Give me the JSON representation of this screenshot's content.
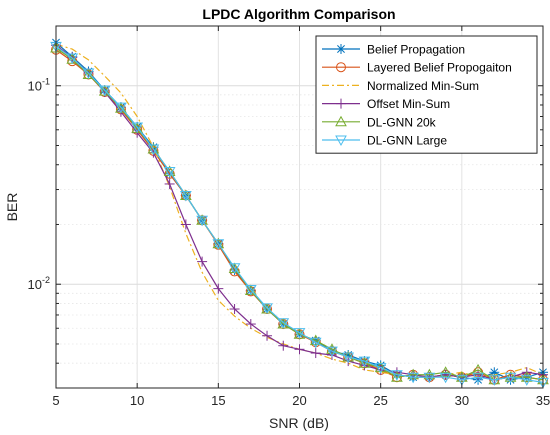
{
  "chart_data": {
    "type": "line",
    "title": "LPDC Algorithm Comparison",
    "xlabel": "SNR (dB)",
    "ylabel": "BER",
    "xlim": [
      5,
      35
    ],
    "ylim": [
      0.003,
      0.2
    ],
    "yscale": "log",
    "grid": true,
    "minor_grid": true,
    "legend_position": "top-right",
    "x_ticks": [
      5,
      10,
      15,
      20,
      25,
      30,
      35
    ],
    "x_tick_labels": [
      "5",
      "10",
      "15",
      "20",
      "25",
      "30",
      "35"
    ],
    "y_ticks": [
      0.01,
      0.1
    ],
    "y_tick_labels": [
      {
        "base": "10",
        "exp": "-2"
      },
      {
        "base": "10",
        "exp": "-1"
      }
    ],
    "x": [
      5,
      6,
      7,
      8,
      9,
      10,
      11,
      12,
      13,
      14,
      15,
      16,
      17,
      18,
      19,
      20,
      21,
      22,
      23,
      24,
      25,
      26,
      27,
      28,
      29,
      30,
      31,
      32,
      33,
      34,
      35
    ],
    "series": [
      {
        "name": "Belief Propagation",
        "color": "#0072bd",
        "marker": "asterisk",
        "values": [
          0.165,
          0.14,
          0.118,
          0.095,
          0.078,
          0.062,
          0.049,
          0.036,
          0.028,
          0.021,
          0.016,
          0.0118,
          0.0093,
          0.0075,
          0.0063,
          0.0056,
          0.0052,
          0.0046,
          0.0044,
          0.0041,
          0.0039,
          0.0035,
          0.0034,
          0.0034,
          0.0035,
          0.0034,
          0.0033,
          0.0036,
          0.0033,
          0.0034,
          0.0036
        ]
      },
      {
        "name": "Layered Belief Propogaiton",
        "color": "#d95319",
        "marker": "circle",
        "values": [
          0.152,
          0.133,
          0.114,
          0.093,
          0.076,
          0.06,
          0.047,
          0.036,
          0.028,
          0.021,
          0.0158,
          0.0116,
          0.0092,
          0.0075,
          0.0063,
          0.0056,
          0.0051,
          0.0046,
          0.0043,
          0.004,
          0.0037,
          0.0034,
          0.0035,
          0.0034,
          0.0035,
          0.0034,
          0.0036,
          0.0033,
          0.0035,
          0.0034,
          0.0033
        ]
      },
      {
        "name": "Normalized Min-Sum",
        "color": "#edb120",
        "marker": "none",
        "values": [
          0.162,
          0.153,
          0.135,
          0.112,
          0.092,
          0.07,
          0.049,
          0.031,
          0.018,
          0.0115,
          0.0083,
          0.0069,
          0.006,
          0.0054,
          0.005,
          0.0047,
          0.0045,
          0.0042,
          0.004,
          0.0037,
          0.0036,
          0.0035,
          0.0034,
          0.0034,
          0.0035,
          0.0036,
          0.0034,
          0.0035,
          0.0036,
          0.0038,
          0.0035
        ]
      },
      {
        "name": "Offset Min-Sum",
        "color": "#7e2f8e",
        "marker": "plus",
        "values": [
          0.16,
          0.139,
          0.116,
          0.093,
          0.074,
          0.058,
          0.046,
          0.032,
          0.02,
          0.013,
          0.0095,
          0.0075,
          0.0063,
          0.0055,
          0.0049,
          0.0047,
          0.0045,
          0.0044,
          0.0041,
          0.0039,
          0.0037,
          0.0036,
          0.0035,
          0.0034,
          0.0035,
          0.0034,
          0.0035,
          0.0033,
          0.0034,
          0.0036,
          0.0035
        ]
      },
      {
        "name": "DL-GNN 20k",
        "color": "#77ac30",
        "marker": "triangle-up",
        "values": [
          0.155,
          0.136,
          0.114,
          0.094,
          0.077,
          0.061,
          0.048,
          0.037,
          0.028,
          0.021,
          0.016,
          0.012,
          0.0093,
          0.0075,
          0.0063,
          0.0056,
          0.0052,
          0.0047,
          0.0043,
          0.004,
          0.0038,
          0.0034,
          0.0035,
          0.0035,
          0.0036,
          0.0034,
          0.0037,
          0.0033,
          0.0034,
          0.0034,
          0.0033
        ]
      },
      {
        "name": "DL-GNN Large",
        "color": "#4dbeee",
        "marker": "triangle-down",
        "values": [
          0.158,
          0.138,
          0.116,
          0.095,
          0.078,
          0.062,
          0.048,
          0.037,
          0.028,
          0.021,
          0.016,
          0.0121,
          0.0094,
          0.0076,
          0.0064,
          0.0057,
          0.0051,
          0.0046,
          0.0043,
          0.0041,
          0.0038,
          0.0035,
          0.0034,
          0.0034,
          0.0034,
          0.0033,
          0.0034,
          0.0033,
          0.0034,
          0.0033,
          0.0032
        ]
      }
    ]
  }
}
